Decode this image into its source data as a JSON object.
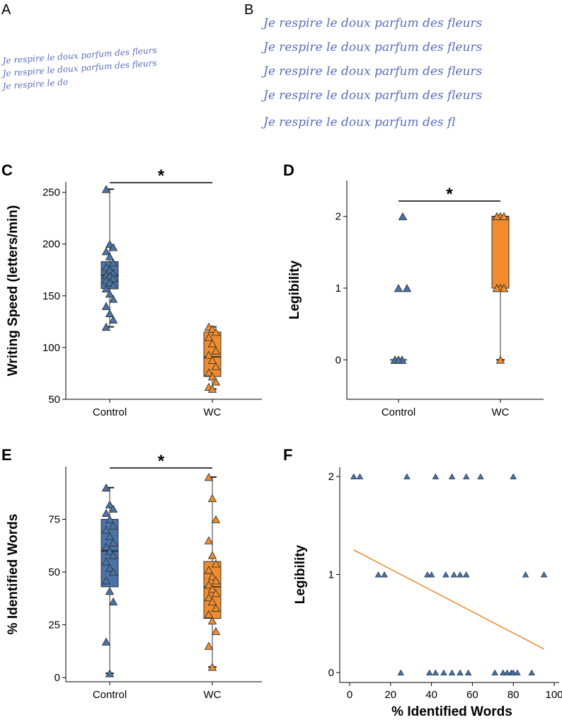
{
  "colors": {
    "control": "#4a74a8",
    "wc": "#f08c2e",
    "hand": "#5a6fb8",
    "reg": "#f08c2e"
  },
  "panel_a": {
    "letter": "A",
    "lines": [
      "Je respire le doux parfum des fleurs",
      "Je respire le doux parfum des fleurs",
      "Je respire le do"
    ]
  },
  "panel_b": {
    "letter": "B",
    "lines": [
      "Je respire le doux parfum des fleurs",
      "Je respire le doux parfum des fleurs",
      "Je respire le doux parfum des fleurs",
      "Je respire le doux parfum des fleurs",
      "Je respire le doux parfum des fl"
    ]
  },
  "chart_data": [
    {
      "panel": "C",
      "type": "box",
      "categories": [
        "Control",
        "WC"
      ],
      "ylabel": "Writing Speed (letters/min)",
      "ylim": [
        50,
        260
      ],
      "yticks": [
        50,
        100,
        150,
        200,
        250
      ],
      "significance": "*",
      "boxes": [
        {
          "name": "Control",
          "min": 120,
          "q1": 157,
          "median": 170,
          "q3": 183,
          "max": 253,
          "points": [
            253,
            200,
            197,
            193,
            188,
            182,
            178,
            175,
            172,
            170,
            169,
            167,
            165,
            163,
            160,
            157,
            152,
            147,
            140,
            133,
            127,
            120
          ]
        },
        {
          "name": "WC",
          "min": 60,
          "q1": 72,
          "median": 91,
          "q3": 115,
          "max": 120,
          "points": [
            120,
            118,
            115,
            110,
            104,
            97,
            93,
            88,
            82,
            76,
            72,
            67,
            62,
            60
          ]
        }
      ]
    },
    {
      "panel": "D",
      "type": "box",
      "categories": [
        "Control",
        "WC"
      ],
      "ylabel": "Legibility",
      "ylim": [
        -0.55,
        2.5
      ],
      "yticks": [
        0,
        1,
        2
      ],
      "significance": "*",
      "boxes": [
        {
          "name": "Control",
          "min": 0,
          "q1": 0,
          "median": 0,
          "q3": 0,
          "max": 0,
          "points": [
            2,
            1,
            0,
            0,
            0,
            0,
            0,
            0,
            0,
            0,
            0
          ],
          "outliers": [
            2
          ]
        },
        {
          "name": "WC",
          "min": 0,
          "q1": 1,
          "median": 2,
          "q3": 2,
          "max": 2,
          "points": [
            2,
            2,
            2,
            2,
            2,
            2,
            2,
            1,
            1,
            1,
            1,
            1,
            1,
            0
          ]
        }
      ]
    },
    {
      "panel": "E",
      "type": "box",
      "categories": [
        "Control",
        "WC"
      ],
      "ylabel": "% Identified Words",
      "ylim": [
        -2,
        100
      ],
      "yticks": [
        0,
        25,
        50,
        75
      ],
      "significance": "*",
      "boxes": [
        {
          "name": "Control",
          "min": 2,
          "q1": 43,
          "median": 60,
          "q3": 75,
          "max": 90,
          "points": [
            90,
            82,
            80,
            78,
            75,
            72,
            70,
            67,
            64,
            62,
            60,
            58,
            55,
            52,
            50,
            46,
            41,
            36,
            17,
            2
          ]
        },
        {
          "name": "WC",
          "min": 5,
          "q1": 28,
          "median": 43,
          "q3": 55,
          "max": 95,
          "points": [
            95,
            85,
            75,
            65,
            58,
            54,
            51,
            48,
            46,
            44,
            42,
            40,
            38,
            36,
            33,
            30,
            27,
            22,
            15,
            5
          ]
        }
      ]
    },
    {
      "panel": "F",
      "type": "scatter",
      "xlabel": "% Identified Words",
      "ylabel": "Legibility",
      "xlim": [
        -5,
        105
      ],
      "ylim": [
        -0.1,
        2.1
      ],
      "xticks": [
        0,
        20,
        40,
        60,
        80,
        100
      ],
      "yticks": [
        0,
        1,
        2
      ],
      "points": [
        [
          2,
          2
        ],
        [
          5,
          2
        ],
        [
          28,
          2
        ],
        [
          42,
          2
        ],
        [
          50,
          2
        ],
        [
          57,
          2
        ],
        [
          64,
          2
        ],
        [
          80,
          2
        ],
        [
          14,
          1
        ],
        [
          17,
          1
        ],
        [
          38,
          1
        ],
        [
          40,
          1
        ],
        [
          47,
          1
        ],
        [
          51,
          1
        ],
        [
          54,
          1
        ],
        [
          57,
          1
        ],
        [
          86,
          1
        ],
        [
          95,
          1
        ],
        [
          25,
          0
        ],
        [
          39,
          0
        ],
        [
          42,
          0
        ],
        [
          46,
          0
        ],
        [
          50,
          0
        ],
        [
          54,
          0
        ],
        [
          58,
          0
        ],
        [
          71,
          0
        ],
        [
          75,
          0
        ],
        [
          77,
          0
        ],
        [
          79,
          0
        ],
        [
          80,
          0
        ],
        [
          82,
          0
        ],
        [
          89,
          0
        ]
      ],
      "regression": {
        "x": [
          2,
          95
        ],
        "y": [
          1.25,
          0.24
        ]
      }
    }
  ]
}
